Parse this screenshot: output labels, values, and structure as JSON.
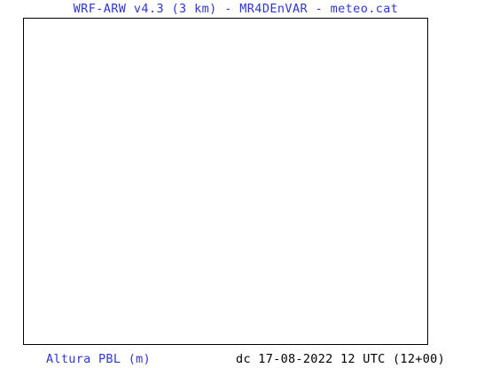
{
  "header": {
    "title": "WRF-ARW v4.3 (3 km) - MR4DEnVAR - meteo.cat"
  },
  "map": {
    "content": ""
  },
  "footer": {
    "variable_label": "Altura PBL (m)",
    "run_info": "dc 17-08-2022 12 UTC (12+00)"
  },
  "colors": {
    "title_text": "#2f36d6",
    "frame_border": "#000000",
    "background": "#ffffff",
    "run_info_text": "#000000"
  }
}
